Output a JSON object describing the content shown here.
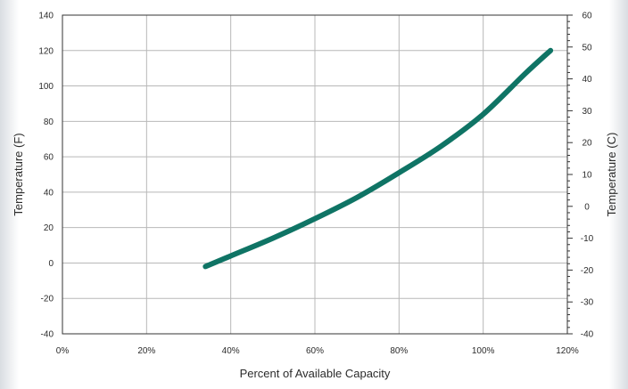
{
  "chart_data": {
    "type": "line",
    "xlabel": "Percent of Available Capacity",
    "ylabel": "Temperature (F)",
    "ylabel_right": "Temperature (C)",
    "xlim": [
      0,
      120
    ],
    "ylim": [
      -40,
      140
    ],
    "ylim_right": [
      -40,
      60
    ],
    "grid": true,
    "x_ticks": [
      "0%",
      "20%",
      "40%",
      "60%",
      "80%",
      "100%",
      "120%"
    ],
    "y_ticks": [
      "-40",
      "-20",
      "0",
      "20",
      "40",
      "60",
      "80",
      "100",
      "120",
      "140"
    ],
    "y_ticks_right": [
      "-40",
      "-30",
      "-20",
      "-10",
      "0",
      "10",
      "20",
      "30",
      "40",
      "50",
      "60"
    ],
    "series": [
      {
        "x": [
          34,
          40,
          50,
          60,
          70,
          80,
          90,
          100,
          110,
          116
        ],
        "y": [
          -2,
          4,
          14,
          25,
          37,
          51,
          66,
          84,
          107,
          120
        ],
        "color": "#0f7465"
      }
    ]
  }
}
